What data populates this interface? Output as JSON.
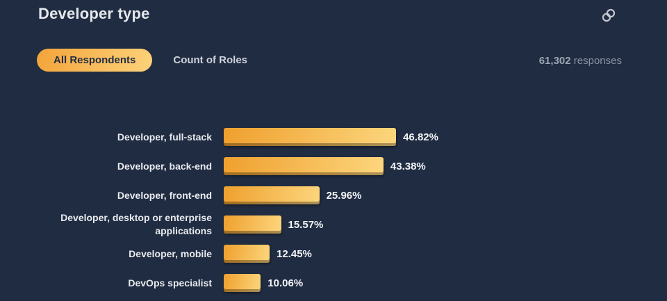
{
  "header": {
    "title": "Developer type"
  },
  "controls": {
    "options": [
      {
        "label": "All Respondents",
        "selected": true
      },
      {
        "label": "Count of Roles",
        "selected": false
      }
    ],
    "responses_count": "61,302",
    "responses_label": "responses"
  },
  "icons": {
    "share": "link-icon"
  },
  "chart_data": {
    "type": "bar",
    "orientation": "horizontal",
    "title": "Developer type",
    "categories": [
      "Developer, full-stack",
      "Developer, back-end",
      "Developer, front-end",
      "Developer, desktop or enterprise applications",
      "Developer, mobile",
      "DevOps specialist"
    ],
    "values": [
      46.82,
      43.38,
      25.96,
      15.57,
      12.45,
      10.06
    ],
    "value_labels": [
      "46.82%",
      "43.38%",
      "25.96%",
      "15.57%",
      "12.45%",
      "10.06%"
    ],
    "unit": "%",
    "xlim": [
      0,
      100
    ],
    "grid": false,
    "legend": "none",
    "bar_gradient": {
      "start": "#efa02e",
      "end": "#fcd67d"
    }
  },
  "colors": {
    "background": "#202c42",
    "accent_gradient_start": "#f3a43a",
    "accent_gradient_end": "#fcd077",
    "text_primary": "#e8eaee",
    "text_muted": "#8b94a2"
  }
}
